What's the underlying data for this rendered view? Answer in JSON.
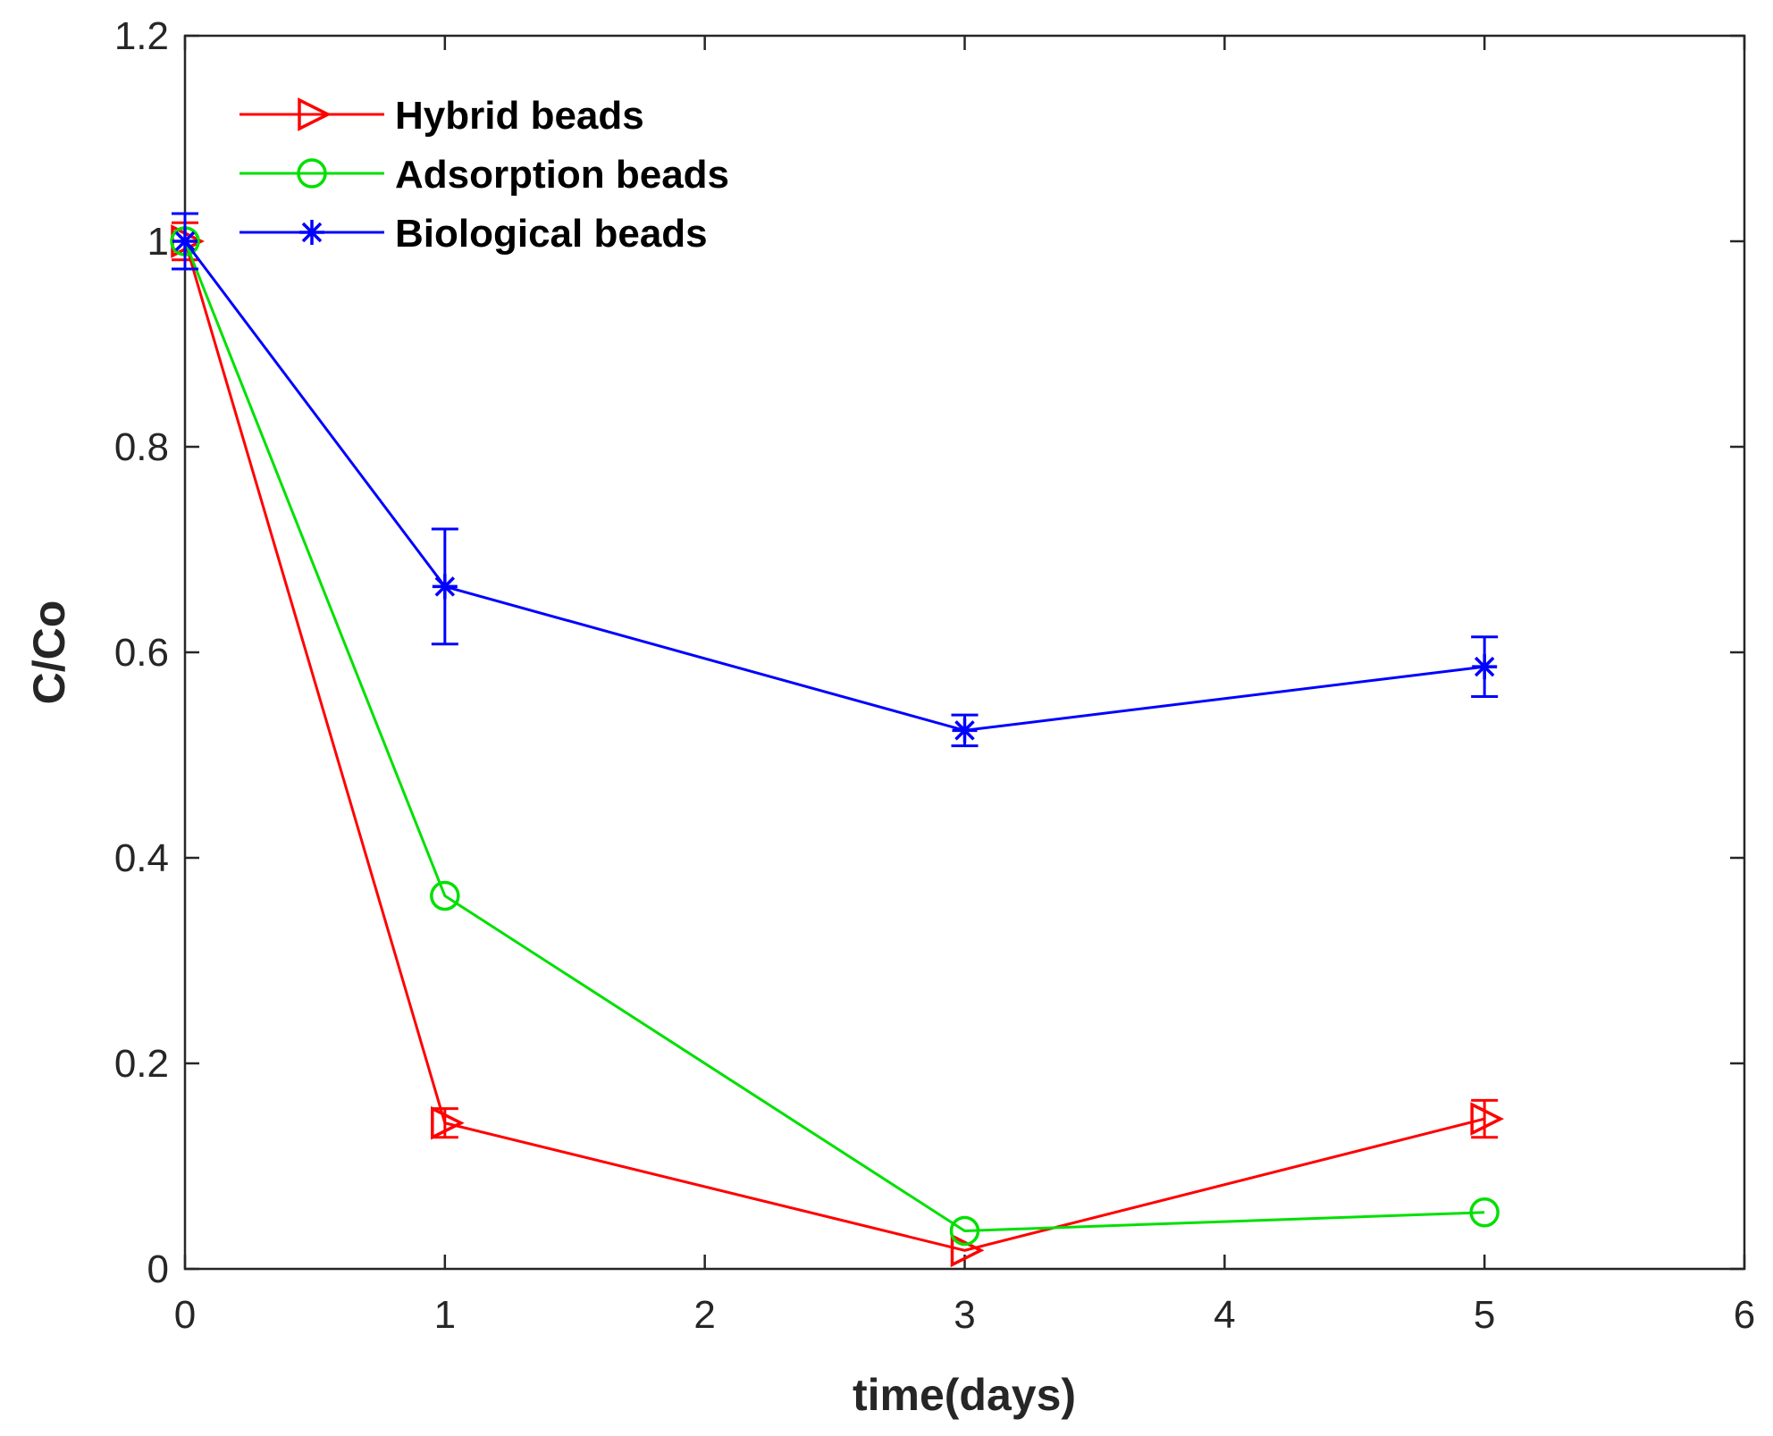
{
  "chart_data": {
    "type": "line",
    "title": "",
    "xlabel": "time(days)",
    "ylabel": "C/Co",
    "xlim": [
      0,
      6
    ],
    "ylim": [
      0,
      1.2
    ],
    "xticks": [
      0,
      1,
      2,
      3,
      4,
      5,
      6
    ],
    "yticks": [
      0,
      0.2,
      0.4,
      0.6,
      0.8,
      1,
      1.2
    ],
    "xtick_labels": [
      "0",
      "1",
      "2",
      "3",
      "4",
      "5",
      "6"
    ],
    "ytick_labels": [
      "0",
      "0.2",
      "0.4",
      "0.6",
      "0.8",
      "1",
      "1.2"
    ],
    "grid": false,
    "legend_position": "top-left",
    "x": [
      0,
      1,
      3,
      5
    ],
    "series": [
      {
        "name": "Hybrid beads",
        "color": "#ff0000",
        "marker": "triangle-right",
        "values": [
          1.0,
          0.142,
          0.018,
          0.146
        ],
        "errors": [
          0.018,
          0.014,
          0.0,
          0.018
        ]
      },
      {
        "name": "Adsorption beads",
        "color": "#00e000",
        "marker": "circle",
        "values": [
          1.0,
          0.363,
          0.037,
          0.055
        ],
        "errors": [
          0.0,
          0.0,
          0.0,
          0.0
        ]
      },
      {
        "name": "Biological beads",
        "color": "#0000ff",
        "marker": "asterisk",
        "values": [
          1.0,
          0.664,
          0.524,
          0.586
        ],
        "errors": [
          0.027,
          0.056,
          0.015,
          0.029
        ]
      }
    ]
  }
}
